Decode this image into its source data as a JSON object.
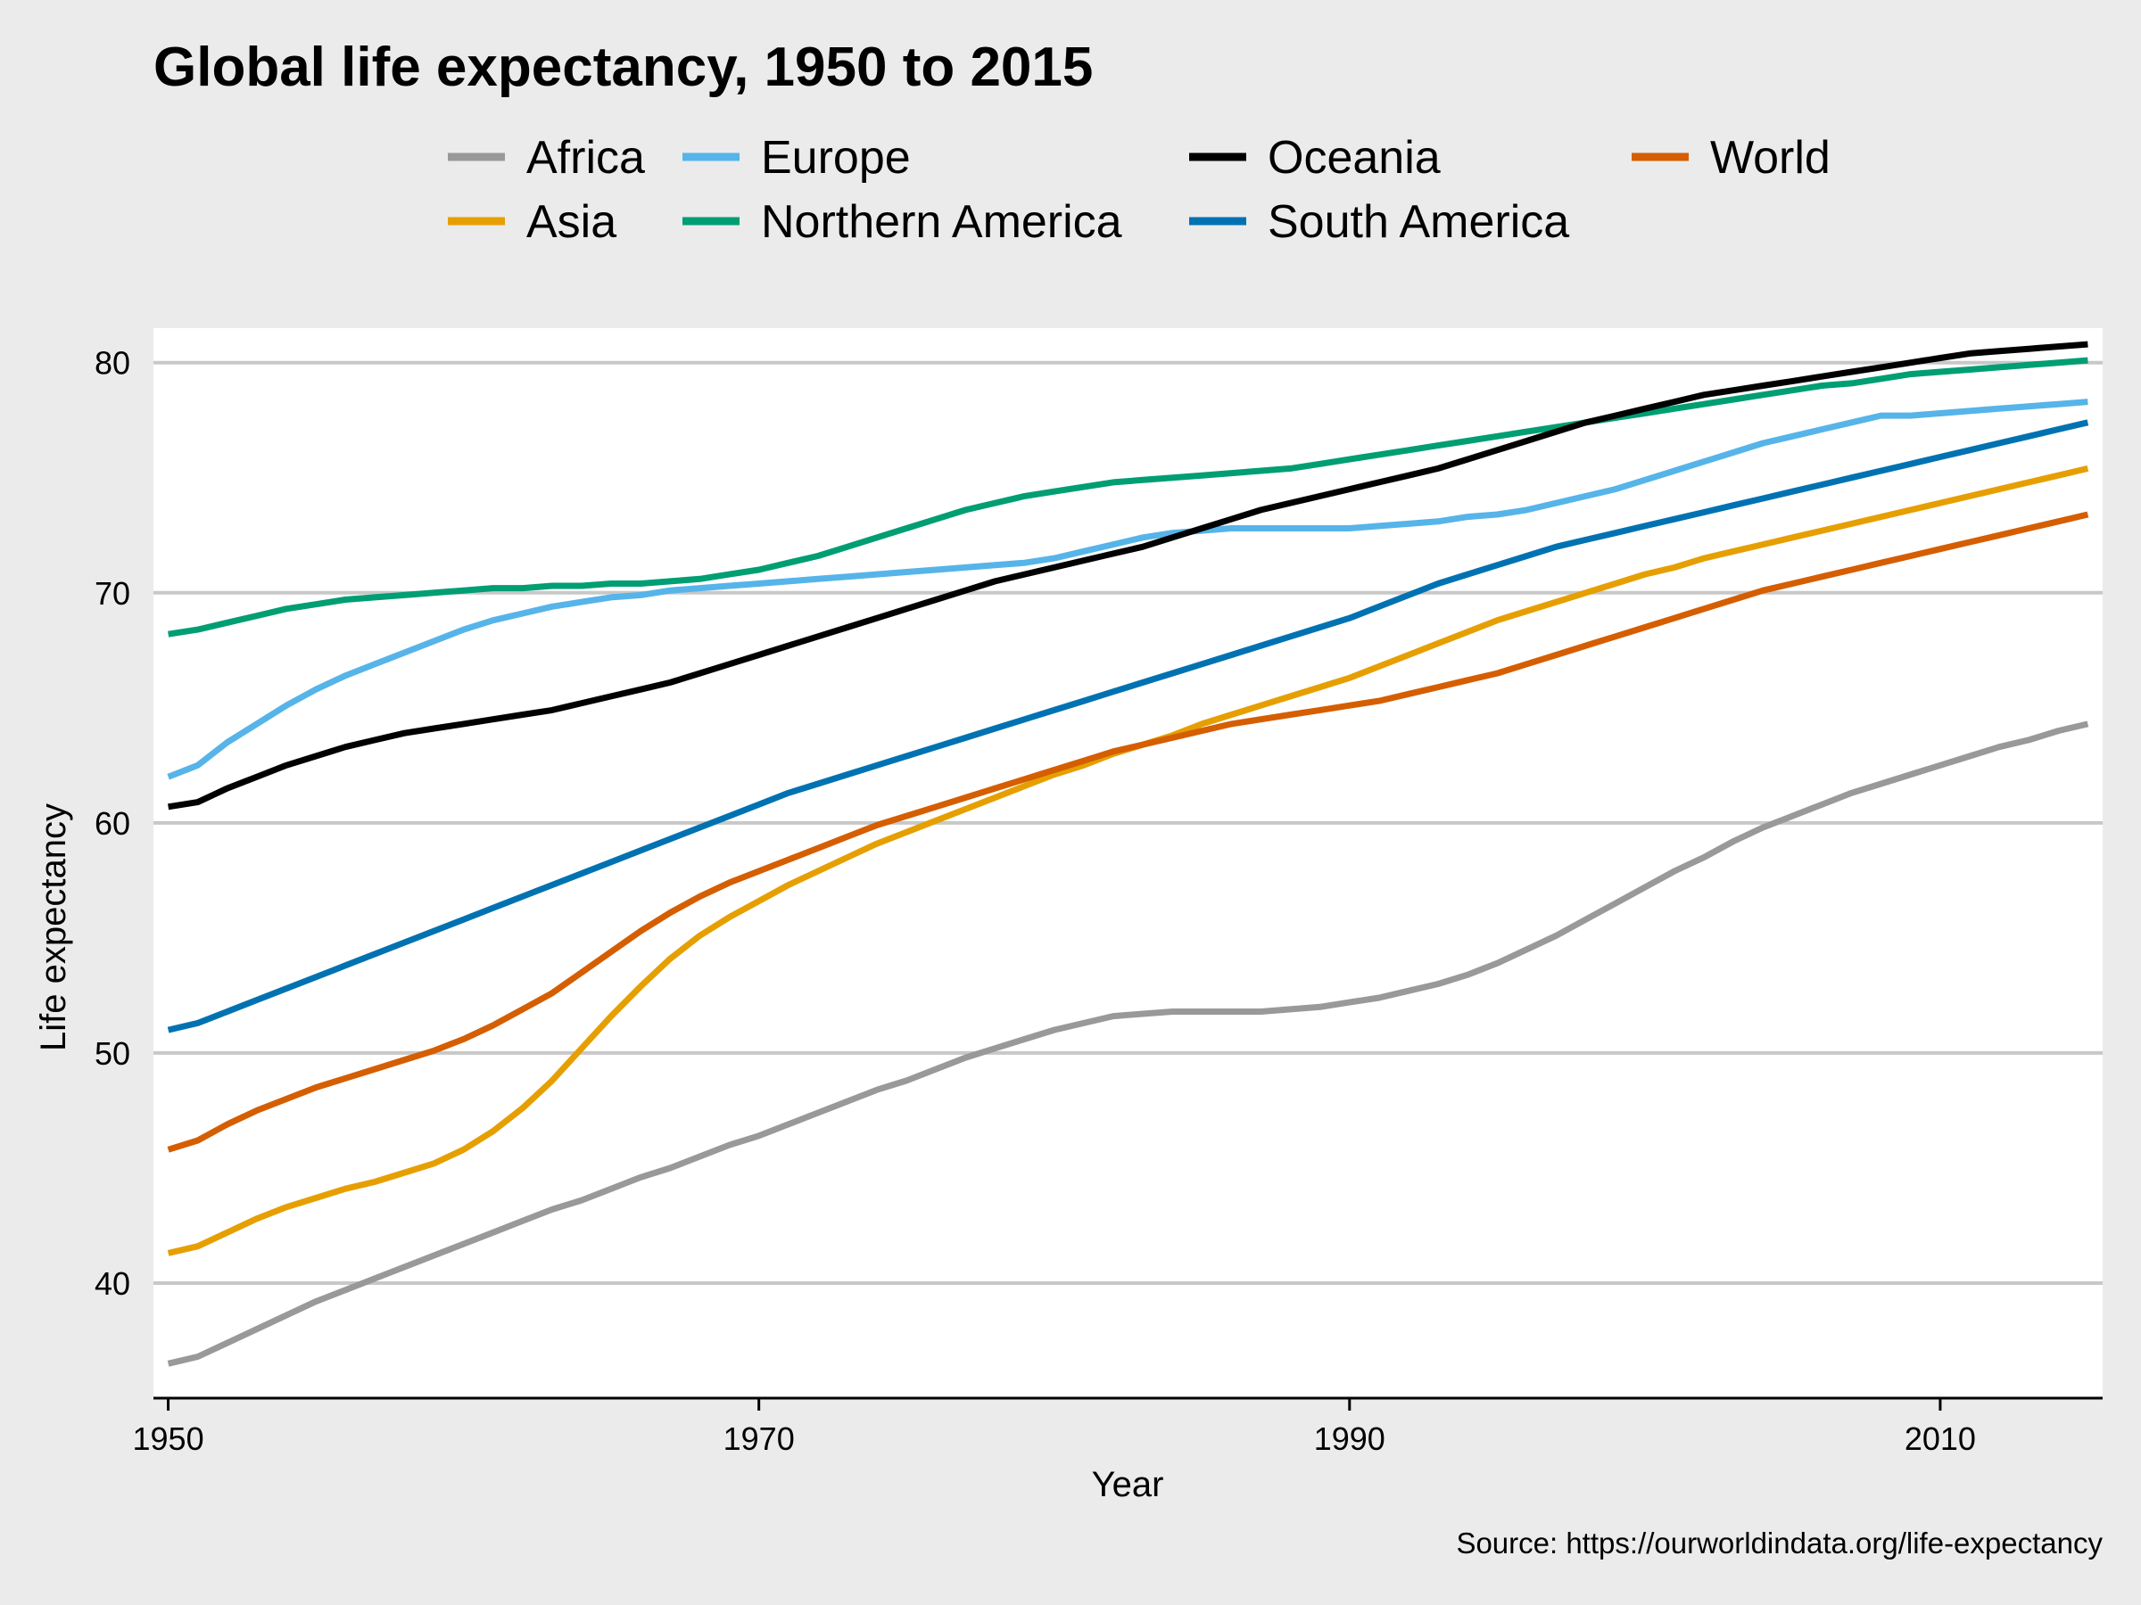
{
  "chart_data": {
    "type": "line",
    "title": "Global life expectancy, 1950 to 2015",
    "xlabel": "Year",
    "ylabel": "Life expectancy",
    "source": "Source: https://ourworldindata.org/life-expectancy",
    "xlim": [
      1949.5,
      2015.5
    ],
    "ylim": [
      35,
      81.5
    ],
    "x_ticks": [
      1950,
      1970,
      1990,
      2010
    ],
    "y_ticks": [
      40,
      50,
      60,
      70,
      80
    ],
    "grid": "horizontal",
    "legend_position": "top",
    "x": [
      1950,
      1951,
      1952,
      1953,
      1954,
      1955,
      1956,
      1957,
      1958,
      1959,
      1960,
      1961,
      1962,
      1963,
      1964,
      1965,
      1966,
      1967,
      1968,
      1969,
      1970,
      1971,
      1972,
      1973,
      1974,
      1975,
      1976,
      1977,
      1978,
      1979,
      1980,
      1981,
      1982,
      1983,
      1984,
      1985,
      1986,
      1987,
      1988,
      1989,
      1990,
      1991,
      1992,
      1993,
      1994,
      1995,
      1996,
      1997,
      1998,
      1999,
      2000,
      2001,
      2002,
      2003,
      2004,
      2005,
      2006,
      2007,
      2008,
      2009,
      2010,
      2011,
      2012,
      2013,
      2014,
      2015
    ],
    "series": [
      {
        "name": "Africa",
        "color": "#999999",
        "values": [
          36.5,
          36.8,
          37.4,
          38.0,
          38.6,
          39.2,
          39.7,
          40.2,
          40.7,
          41.2,
          41.7,
          42.2,
          42.7,
          43.2,
          43.6,
          44.1,
          44.6,
          45.0,
          45.5,
          46.0,
          46.4,
          46.9,
          47.4,
          47.9,
          48.4,
          48.8,
          49.3,
          49.8,
          50.2,
          50.6,
          51.0,
          51.3,
          51.6,
          51.7,
          51.8,
          51.8,
          51.8,
          51.8,
          51.9,
          52.0,
          52.2,
          52.4,
          52.7,
          53.0,
          53.4,
          53.9,
          54.5,
          55.1,
          55.8,
          56.5,
          57.2,
          57.9,
          58.5,
          59.2,
          59.8,
          60.3,
          60.8,
          61.3,
          61.7,
          62.1,
          62.5,
          62.9,
          63.3,
          63.6,
          64.0,
          64.3
        ]
      },
      {
        "name": "Asia",
        "color": "#e69f00",
        "values": [
          41.3,
          41.6,
          42.2,
          42.8,
          43.3,
          43.7,
          44.1,
          44.4,
          44.8,
          45.2,
          45.8,
          46.6,
          47.6,
          48.8,
          50.2,
          51.6,
          52.9,
          54.1,
          55.1,
          55.9,
          56.6,
          57.3,
          57.9,
          58.5,
          59.1,
          59.6,
          60.1,
          60.6,
          61.1,
          61.6,
          62.1,
          62.5,
          63.0,
          63.4,
          63.8,
          64.3,
          64.7,
          65.1,
          65.5,
          65.9,
          66.3,
          66.8,
          67.3,
          67.8,
          68.3,
          68.8,
          69.2,
          69.6,
          70.0,
          70.4,
          70.8,
          71.1,
          71.5,
          71.8,
          72.1,
          72.4,
          72.7,
          73.0,
          73.3,
          73.6,
          73.9,
          74.2,
          74.5,
          74.8,
          75.1,
          75.4
        ]
      },
      {
        "name": "Europe",
        "color": "#56b4e9",
        "values": [
          62.0,
          62.5,
          63.5,
          64.3,
          65.1,
          65.8,
          66.4,
          66.9,
          67.4,
          67.9,
          68.4,
          68.8,
          69.1,
          69.4,
          69.6,
          69.8,
          69.9,
          70.1,
          70.2,
          70.3,
          70.4,
          70.5,
          70.6,
          70.7,
          70.8,
          70.9,
          71.0,
          71.1,
          71.2,
          71.3,
          71.5,
          71.8,
          72.1,
          72.4,
          72.6,
          72.7,
          72.8,
          72.8,
          72.8,
          72.8,
          72.8,
          72.9,
          73.0,
          73.1,
          73.3,
          73.4,
          73.6,
          73.9,
          74.2,
          74.5,
          74.9,
          75.3,
          75.7,
          76.1,
          76.5,
          76.8,
          77.1,
          77.4,
          77.7,
          77.7,
          77.8,
          77.9,
          78.0,
          78.1,
          78.2,
          78.3
        ]
      },
      {
        "name": "Northern America",
        "color": "#009e73",
        "values": [
          68.2,
          68.4,
          68.7,
          69.0,
          69.3,
          69.5,
          69.7,
          69.8,
          69.9,
          70.0,
          70.1,
          70.2,
          70.2,
          70.3,
          70.3,
          70.4,
          70.4,
          70.5,
          70.6,
          70.8,
          71.0,
          71.3,
          71.6,
          72.0,
          72.4,
          72.8,
          73.2,
          73.6,
          73.9,
          74.2,
          74.4,
          74.6,
          74.8,
          74.9,
          75.0,
          75.1,
          75.2,
          75.3,
          75.4,
          75.6,
          75.8,
          76.0,
          76.2,
          76.4,
          76.6,
          76.8,
          77.0,
          77.2,
          77.4,
          77.6,
          77.8,
          78.0,
          78.2,
          78.4,
          78.6,
          78.8,
          79.0,
          79.1,
          79.3,
          79.5,
          79.6,
          79.7,
          79.8,
          79.9,
          80.0,
          80.1
        ]
      },
      {
        "name": "Oceania",
        "color": "#000000",
        "values": [
          60.7,
          60.9,
          61.5,
          62.0,
          62.5,
          62.9,
          63.3,
          63.6,
          63.9,
          64.1,
          64.3,
          64.5,
          64.7,
          64.9,
          65.2,
          65.5,
          65.8,
          66.1,
          66.5,
          66.9,
          67.3,
          67.7,
          68.1,
          68.5,
          68.9,
          69.3,
          69.7,
          70.1,
          70.5,
          70.8,
          71.1,
          71.4,
          71.7,
          72.0,
          72.4,
          72.8,
          73.2,
          73.6,
          73.9,
          74.2,
          74.5,
          74.8,
          75.1,
          75.4,
          75.8,
          76.2,
          76.6,
          77.0,
          77.4,
          77.7,
          78.0,
          78.3,
          78.6,
          78.8,
          79.0,
          79.2,
          79.4,
          79.6,
          79.8,
          80.0,
          80.2,
          80.4,
          80.5,
          80.6,
          80.7,
          80.8
        ]
      },
      {
        "name": "South America",
        "color": "#0072b2",
        "values": [
          51.0,
          51.3,
          51.8,
          52.3,
          52.8,
          53.3,
          53.8,
          54.3,
          54.8,
          55.3,
          55.8,
          56.3,
          56.8,
          57.3,
          57.8,
          58.3,
          58.8,
          59.3,
          59.8,
          60.3,
          60.8,
          61.3,
          61.7,
          62.1,
          62.5,
          62.9,
          63.3,
          63.7,
          64.1,
          64.5,
          64.9,
          65.3,
          65.7,
          66.1,
          66.5,
          66.9,
          67.3,
          67.7,
          68.1,
          68.5,
          68.9,
          69.4,
          69.9,
          70.4,
          70.8,
          71.2,
          71.6,
          72.0,
          72.3,
          72.6,
          72.9,
          73.2,
          73.5,
          73.8,
          74.1,
          74.4,
          74.7,
          75.0,
          75.3,
          75.6,
          75.9,
          76.2,
          76.5,
          76.8,
          77.1,
          77.4
        ]
      },
      {
        "name": "World",
        "color": "#d55e00",
        "values": [
          45.8,
          46.2,
          46.9,
          47.5,
          48.0,
          48.5,
          48.9,
          49.3,
          49.7,
          50.1,
          50.6,
          51.2,
          51.9,
          52.6,
          53.5,
          54.4,
          55.3,
          56.1,
          56.8,
          57.4,
          57.9,
          58.4,
          58.9,
          59.4,
          59.9,
          60.3,
          60.7,
          61.1,
          61.5,
          61.9,
          62.3,
          62.7,
          63.1,
          63.4,
          63.7,
          64.0,
          64.3,
          64.5,
          64.7,
          64.9,
          65.1,
          65.3,
          65.6,
          65.9,
          66.2,
          66.5,
          66.9,
          67.3,
          67.7,
          68.1,
          68.5,
          68.9,
          69.3,
          69.7,
          70.1,
          70.4,
          70.7,
          71.0,
          71.3,
          71.6,
          71.9,
          72.2,
          72.5,
          72.8,
          73.1,
          73.4
        ]
      }
    ]
  }
}
